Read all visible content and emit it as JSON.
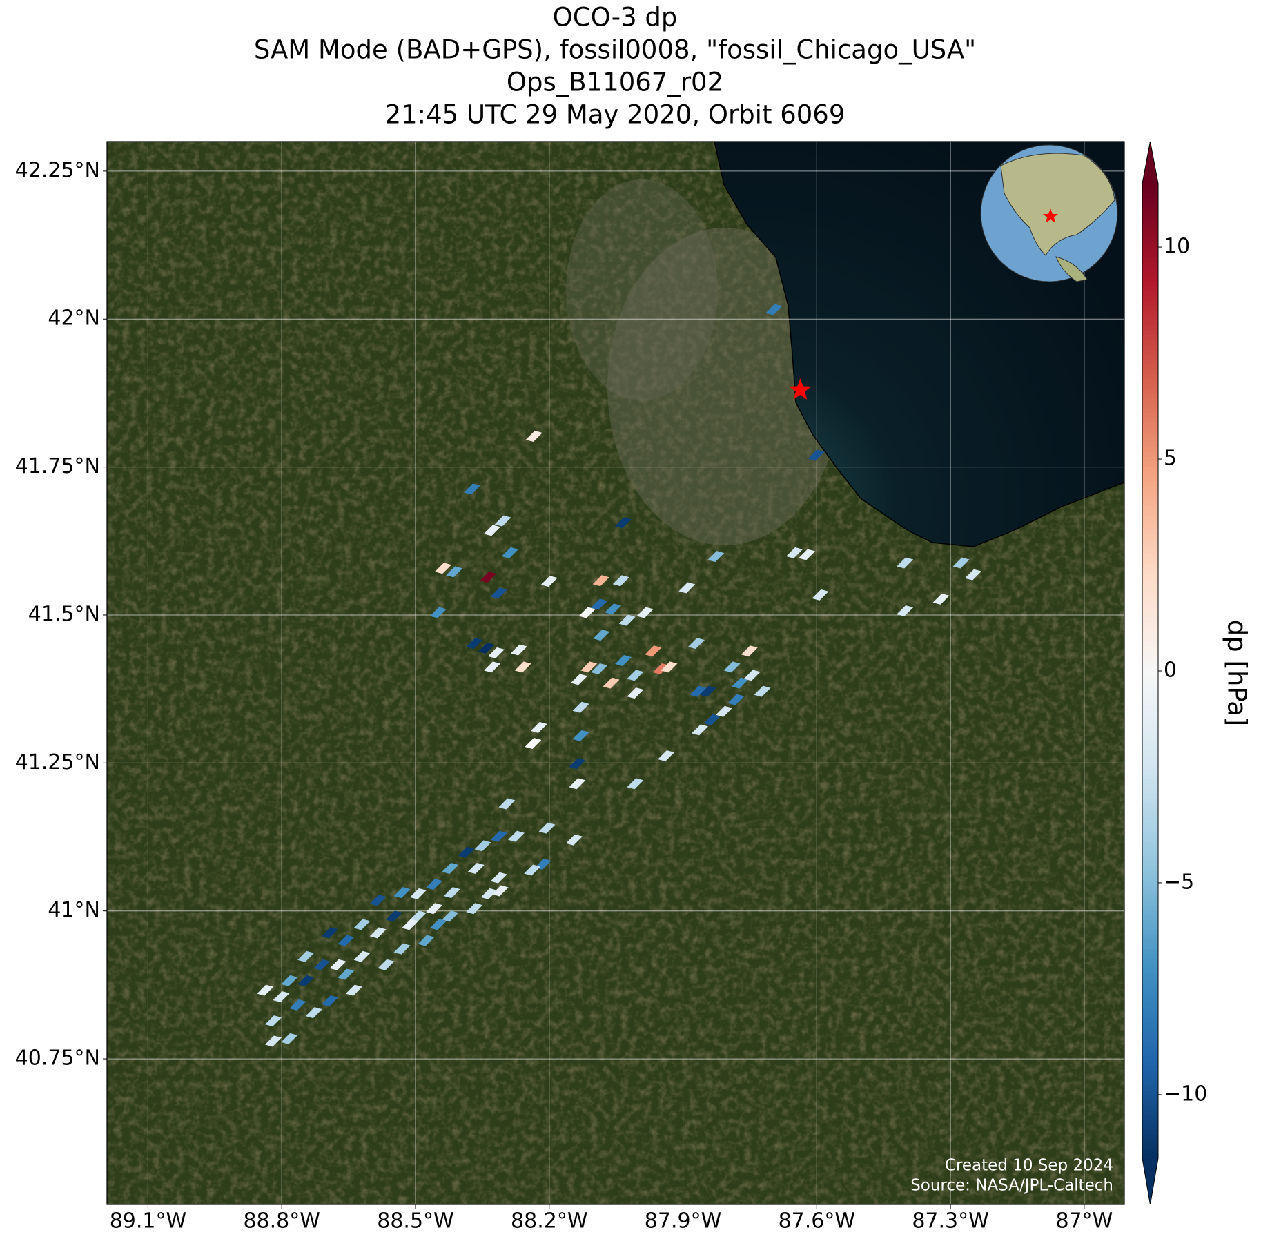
{
  "chart_data": {
    "type": "map",
    "title": [
      "OCO-3 dp",
      "SAM Mode (BAD+GPS), fossil0008, \"fossil_Chicago_USA\"",
      "Ops_B11067_r02",
      "21:45 UTC 29 May 2020, Orbit 6069"
    ],
    "xlim": [
      -89.192,
      -86.91
    ],
    "ylim": [
      40.504,
      42.3
    ],
    "xticks": [
      {
        "value": -89.1,
        "label": "89.1°W"
      },
      {
        "value": -88.8,
        "label": "88.8°W"
      },
      {
        "value": -88.5,
        "label": "88.5°W"
      },
      {
        "value": -88.2,
        "label": "88.2°W"
      },
      {
        "value": -87.9,
        "label": "87.9°W"
      },
      {
        "value": -87.6,
        "label": "87.6°W"
      },
      {
        "value": -87.3,
        "label": "87.3°W"
      },
      {
        "value": -87,
        "label": "87°W"
      }
    ],
    "yticks": [
      {
        "value": 40.75,
        "label": "40.75°N"
      },
      {
        "value": 41,
        "label": "41°N"
      },
      {
        "value": 41.25,
        "label": "41.25°N"
      },
      {
        "value": 41.5,
        "label": "41.5°N"
      },
      {
        "value": 41.75,
        "label": "41.75°N"
      },
      {
        "value": 42,
        "label": "42°N"
      },
      {
        "value": 42.25,
        "label": "42.25°N"
      }
    ],
    "grid": true,
    "colorbar": {
      "label": "dp [hPa]",
      "lim": [
        -11.5,
        11.5
      ],
      "ticks": [
        {
          "value": -10,
          "label": "−10"
        },
        {
          "value": -5,
          "label": "−5"
        },
        0,
        5,
        10
      ],
      "colormap": [
        "#053061",
        "#2166ac",
        "#4393c3",
        "#92c5de",
        "#d1e5f0",
        "#f7f7f7",
        "#fddbc7",
        "#f4a582",
        "#d6604d",
        "#b2182b",
        "#67001f"
      ]
    },
    "target": {
      "lon": -87.637,
      "lat": 41.88,
      "color": "#ff0000"
    },
    "notes": [
      "Created 10 Sep 2024",
      "Source: NASA/JPL-Caltech"
    ],
    "points": [
      {
        "lon": -87.696,
        "lat": 42.016,
        "dp": -8
      },
      {
        "lon": -88.234,
        "lat": 41.802,
        "dp": 1
      },
      {
        "lon": -88.373,
        "lat": 41.713,
        "dp": -8
      },
      {
        "lon": -87.601,
        "lat": 41.77,
        "dp": -10
      },
      {
        "lon": -88.304,
        "lat": 41.659,
        "dp": -3
      },
      {
        "lon": -88.328,
        "lat": 41.643,
        "dp": -1
      },
      {
        "lon": -88.288,
        "lat": 41.605,
        "dp": -7
      },
      {
        "lon": -88.034,
        "lat": 41.656,
        "dp": -11
      },
      {
        "lon": -87.826,
        "lat": 41.599,
        "dp": -5
      },
      {
        "lon": -88.438,
        "lat": 41.579,
        "dp": 2
      },
      {
        "lon": -88.413,
        "lat": 41.573,
        "dp": -6
      },
      {
        "lon": -88.337,
        "lat": 41.564,
        "dp": 11
      },
      {
        "lon": -88.313,
        "lat": 41.537,
        "dp": -10
      },
      {
        "lon": -88.2,
        "lat": 41.557,
        "dp": -1
      },
      {
        "lon": -88.084,
        "lat": 41.558,
        "dp": 4
      },
      {
        "lon": -88.039,
        "lat": 41.558,
        "dp": -3
      },
      {
        "lon": -88.449,
        "lat": 41.504,
        "dp": -7
      },
      {
        "lon": -87.891,
        "lat": 41.546,
        "dp": -2
      },
      {
        "lon": -87.65,
        "lat": 41.605,
        "dp": -2
      },
      {
        "lon": -87.622,
        "lat": 41.602,
        "dp": -1
      },
      {
        "lon": -87.592,
        "lat": 41.534,
        "dp": -2
      },
      {
        "lon": -87.402,
        "lat": 41.588,
        "dp": -3
      },
      {
        "lon": -87.402,
        "lat": 41.507,
        "dp": -2
      },
      {
        "lon": -87.276,
        "lat": 41.588,
        "dp": -4
      },
      {
        "lon": -87.249,
        "lat": 41.568,
        "dp": -2
      },
      {
        "lon": -87.321,
        "lat": 41.527,
        "dp": -1
      },
      {
        "lon": -88.088,
        "lat": 41.518,
        "dp": -9
      },
      {
        "lon": -88.057,
        "lat": 41.51,
        "dp": -7
      },
      {
        "lon": -88.115,
        "lat": 41.504,
        "dp": 0
      },
      {
        "lon": -88.025,
        "lat": 41.491,
        "dp": -3
      },
      {
        "lon": -87.985,
        "lat": 41.504,
        "dp": -1
      },
      {
        "lon": -88.083,
        "lat": 41.466,
        "dp": -6
      },
      {
        "lon": -88.368,
        "lat": 41.452,
        "dp": -11
      },
      {
        "lon": -88.341,
        "lat": 41.444,
        "dp": -12
      },
      {
        "lon": -88.319,
        "lat": 41.436,
        "dp": -1
      },
      {
        "lon": -88.268,
        "lat": 41.441,
        "dp": -1
      },
      {
        "lon": -88.328,
        "lat": 41.412,
        "dp": -1
      },
      {
        "lon": -88.259,
        "lat": 41.412,
        "dp": 2
      },
      {
        "lon": -88.133,
        "lat": 41.391,
        "dp": -1
      },
      {
        "lon": -88.111,
        "lat": 41.412,
        "dp": 3
      },
      {
        "lon": -88.088,
        "lat": 41.409,
        "dp": -5
      },
      {
        "lon": -88.061,
        "lat": 41.385,
        "dp": 3
      },
      {
        "lon": -88.034,
        "lat": 41.423,
        "dp": -7
      },
      {
        "lon": -88.007,
        "lat": 41.398,
        "dp": -4
      },
      {
        "lon": -87.967,
        "lat": 41.439,
        "dp": 5
      },
      {
        "lon": -87.949,
        "lat": 41.409,
        "dp": 6
      },
      {
        "lon": -87.931,
        "lat": 41.412,
        "dp": 2
      },
      {
        "lon": -87.87,
        "lat": 41.452,
        "dp": -4
      },
      {
        "lon": -87.866,
        "lat": 41.371,
        "dp": -9
      },
      {
        "lon": -87.844,
        "lat": 41.371,
        "dp": -11
      },
      {
        "lon": -87.79,
        "lat": 41.412,
        "dp": -5
      },
      {
        "lon": -87.772,
        "lat": 41.385,
        "dp": -7
      },
      {
        "lon": -87.751,
        "lat": 41.439,
        "dp": 2
      },
      {
        "lon": -87.745,
        "lat": 41.398,
        "dp": -2
      },
      {
        "lon": -87.722,
        "lat": 41.371,
        "dp": -3
      },
      {
        "lon": -87.808,
        "lat": 41.337,
        "dp": -2
      },
      {
        "lon": -87.781,
        "lat": 41.357,
        "dp": -8
      },
      {
        "lon": -88.129,
        "lat": 41.344,
        "dp": -3
      },
      {
        "lon": -88.129,
        "lat": 41.296,
        "dp": -7
      },
      {
        "lon": -88.007,
        "lat": 41.368,
        "dp": -1
      },
      {
        "lon": -88.223,
        "lat": 41.31,
        "dp": -1
      },
      {
        "lon": -88.236,
        "lat": 41.283,
        "dp": 0
      },
      {
        "lon": -88.137,
        "lat": 41.249,
        "dp": -11
      },
      {
        "lon": -88.137,
        "lat": 41.215,
        "dp": -1
      },
      {
        "lon": -88.007,
        "lat": 41.215,
        "dp": -3
      },
      {
        "lon": -87.938,
        "lat": 41.262,
        "dp": -2
      },
      {
        "lon": -87.835,
        "lat": 41.323,
        "dp": -10
      },
      {
        "lon": -87.862,
        "lat": 41.306,
        "dp": -2
      },
      {
        "lon": -88.295,
        "lat": 41.181,
        "dp": -3
      },
      {
        "lon": -88.313,
        "lat": 41.126,
        "dp": -9
      },
      {
        "lon": -88.349,
        "lat": 41.11,
        "dp": -4
      },
      {
        "lon": -88.364,
        "lat": 41.072,
        "dp": -2
      },
      {
        "lon": -88.386,
        "lat": 41.099,
        "dp": -11
      },
      {
        "lon": -88.422,
        "lat": 41.072,
        "dp": -6
      },
      {
        "lon": -88.418,
        "lat": 41.031,
        "dp": -3
      },
      {
        "lon": -88.458,
        "lat": 41.045,
        "dp": -8
      },
      {
        "lon": -88.494,
        "lat": 41.029,
        "dp": -2
      },
      {
        "lon": -88.494,
        "lat": 40.991,
        "dp": -3
      },
      {
        "lon": -88.53,
        "lat": 41.031,
        "dp": -7
      },
      {
        "lon": -88.548,
        "lat": 40.991,
        "dp": -11
      },
      {
        "lon": -88.584,
        "lat": 41.018,
        "dp": -10
      },
      {
        "lon": -88.584,
        "lat": 40.963,
        "dp": -2
      },
      {
        "lon": -88.62,
        "lat": 40.977,
        "dp": -4
      },
      {
        "lon": -88.62,
        "lat": 40.923,
        "dp": -2
      },
      {
        "lon": -88.656,
        "lat": 40.95,
        "dp": -9
      },
      {
        "lon": -88.674,
        "lat": 40.909,
        "dp": -1
      },
      {
        "lon": -88.692,
        "lat": 40.963,
        "dp": -11
      },
      {
        "lon": -88.71,
        "lat": 40.909,
        "dp": -10
      },
      {
        "lon": -88.746,
        "lat": 40.923,
        "dp": -4
      },
      {
        "lon": -88.746,
        "lat": 40.882,
        "dp": -11
      },
      {
        "lon": -88.764,
        "lat": 40.841,
        "dp": -8
      },
      {
        "lon": -88.783,
        "lat": 40.882,
        "dp": -6
      },
      {
        "lon": -88.801,
        "lat": 40.855,
        "dp": -2
      },
      {
        "lon": -88.819,
        "lat": 40.814,
        "dp": -3
      },
      {
        "lon": -88.819,
        "lat": 40.78,
        "dp": -2
      },
      {
        "lon": -88.837,
        "lat": 40.866,
        "dp": -1
      },
      {
        "lon": -88.692,
        "lat": 40.848,
        "dp": -9
      },
      {
        "lon": -88.656,
        "lat": 40.893,
        "dp": -6
      },
      {
        "lon": -88.449,
        "lat": 40.977,
        "dp": -7
      },
      {
        "lon": -88.422,
        "lat": 40.991,
        "dp": -5
      },
      {
        "lon": -88.313,
        "lat": 41.056,
        "dp": -2
      },
      {
        "lon": -88.31,
        "lat": 41.034,
        "dp": -1
      },
      {
        "lon": -88.205,
        "lat": 41.14,
        "dp": -3
      },
      {
        "lon": -88.214,
        "lat": 41.079,
        "dp": -8
      },
      {
        "lon": -88.238,
        "lat": 41.069,
        "dp": -3
      },
      {
        "lon": -88.144,
        "lat": 41.12,
        "dp": -2
      },
      {
        "lon": -88.274,
        "lat": 41.126,
        "dp": -3
      },
      {
        "lon": -88.335,
        "lat": 41.029,
        "dp": -2
      },
      {
        "lon": -88.368,
        "lat": 41.004,
        "dp": -3
      },
      {
        "lon": -88.476,
        "lat": 40.95,
        "dp": -6
      },
      {
        "lon": -88.53,
        "lat": 40.936,
        "dp": -4
      },
      {
        "lon": -88.566,
        "lat": 40.909,
        "dp": -3
      },
      {
        "lon": -88.638,
        "lat": 40.866,
        "dp": -2
      },
      {
        "lon": -88.783,
        "lat": 40.784,
        "dp": -4
      },
      {
        "lon": -88.728,
        "lat": 40.828,
        "dp": -3
      },
      {
        "lon": -88.458,
        "lat": 41.004,
        "dp": -1
      },
      {
        "lon": -88.512,
        "lat": 40.977,
        "dp": -1
      }
    ]
  }
}
